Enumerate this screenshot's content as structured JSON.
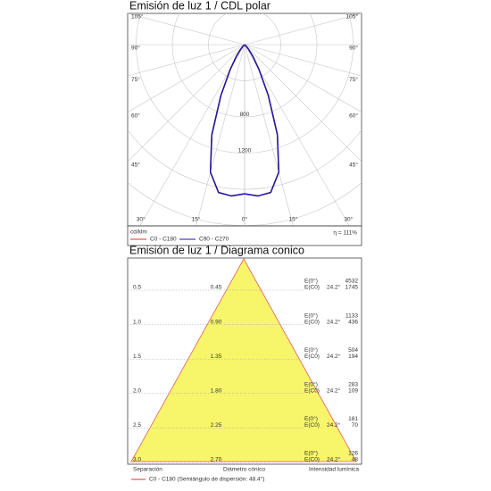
{
  "polar": {
    "title": "Emisión de luz 1 / CDL polar",
    "angle_ticks": [
      {
        "value": 105,
        "label": "105°"
      },
      {
        "value": 90,
        "label": "90°"
      },
      {
        "value": 75,
        "label": "75°"
      },
      {
        "value": 60,
        "label": "60°"
      },
      {
        "value": 45,
        "label": "45°"
      },
      {
        "value": 30,
        "label": "30°"
      },
      {
        "value": 15,
        "label": "15°"
      },
      {
        "value": 0,
        "label": "0°"
      }
    ],
    "radial_grid": [
      400,
      800,
      1200,
      1600,
      2000,
      2400,
      2800,
      3200
    ],
    "radial_labels": [
      800,
      1200
    ],
    "unit": "cd/klm",
    "efficiency": "η = 111%",
    "angles": [
      0,
      5,
      10,
      15,
      20,
      25,
      30,
      35,
      40,
      45,
      50,
      55,
      60
    ],
    "series": [
      {
        "name": "C0 - C180",
        "color": "#e03030",
        "values": [
          1650,
          1680,
          1660,
          1460,
          1060,
          620,
          320,
          160,
          70,
          25,
          8,
          0,
          0
        ]
      },
      {
        "name": "C90 - C270",
        "color": "#1a1aa8",
        "values": [
          1650,
          1680,
          1660,
          1460,
          1060,
          620,
          320,
          160,
          70,
          25,
          8,
          0,
          0
        ]
      }
    ]
  },
  "cone": {
    "title": "Emisión de luz 1 / Diagrama conico",
    "e_labels": [
      "E(0°)",
      "E(C0)"
    ],
    "rows": [
      {
        "height": "0.5",
        "diameter": "0.45",
        "angle": "24.2°",
        "e0": "4532",
        "ec0": "1745"
      },
      {
        "height": "1.0",
        "diameter": "0.90",
        "angle": "24.2°",
        "e0": "1133",
        "ec0": "436"
      },
      {
        "height": "1.5",
        "diameter": "1.35",
        "angle": "24.2°",
        "e0": "504",
        "ec0": "194"
      },
      {
        "height": "2.0",
        "diameter": "1.80",
        "angle": "24.2°",
        "e0": "283",
        "ec0": "109"
      },
      {
        "height": "2.5",
        "diameter": "2.25",
        "angle": "24.2°",
        "e0": "181",
        "ec0": "70"
      },
      {
        "height": "3.0",
        "diameter": "2.70",
        "angle": "24.2°",
        "e0": "126",
        "ec0": "48"
      }
    ],
    "footer": [
      "Separación",
      "Diámetro cónico",
      "Intensidad lumínica"
    ],
    "legend": "C0 - C180 (Semiángulo de dispersión: 48.4°)"
  }
}
